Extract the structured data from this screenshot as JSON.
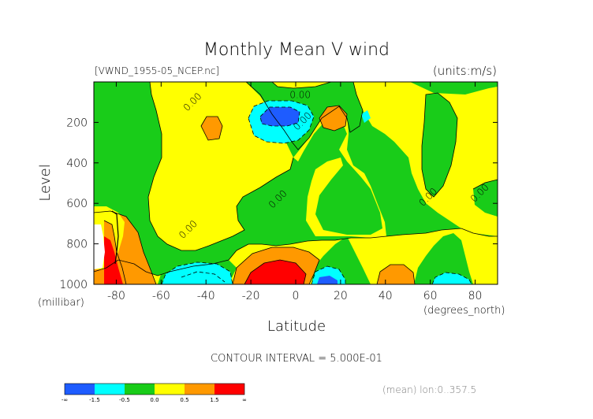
{
  "chart_data": {
    "type": "contour",
    "title": "Monthly Mean V wind",
    "subtitle_left": "[VWND_1955-05_NCEP.nc]",
    "subtitle_right": "(units:m/s)",
    "xlabel": "Latitude",
    "ylabel": "Level",
    "x_units": "(degrees_north)",
    "y_units": "(millibar)",
    "xlim": [
      -90,
      90
    ],
    "ylim": [
      1000,
      0
    ],
    "x_ticks": [
      -80,
      -60,
      -40,
      -20,
      0,
      20,
      40,
      60,
      80
    ],
    "y_ticks": [
      200,
      400,
      600,
      800,
      1000
    ],
    "contour_interval_text": "CONTOUR INTERVAL = 5.000E-01",
    "footer": "(mean) lon:0..357.5",
    "contour_labels": [
      {
        "text": "0.00",
        "x": 2,
        "y": 80
      },
      {
        "text": "0.00",
        "x": -45,
        "y": 110
      },
      {
        "text": "0.00",
        "x": 4,
        "y": 205
      },
      {
        "text": "0.00",
        "x": -7,
        "y": 590
      },
      {
        "text": "0.00",
        "x": -47,
        "y": 740
      },
      {
        "text": "0.00",
        "x": 60,
        "y": 580
      },
      {
        "text": "0.00",
        "x": 83,
        "y": 560
      }
    ],
    "colorbar": {
      "labels": [
        "-∞",
        "-1.5",
        "-0.5",
        "0.0",
        "0.5",
        "1.5",
        "∞"
      ],
      "colors": [
        "#1e5cff",
        "#00ffff",
        "#19cc19",
        "#ffff00",
        "#ff9900",
        "#ff0000"
      ]
    },
    "fill_colors": {
      "strong_negative": "#1e5cff",
      "negative": "#00ffff",
      "near_zero_negative": "#19cc19",
      "near_zero_positive": "#ffff00",
      "positive": "#ff9900",
      "strong_positive": "#ff0000"
    }
  }
}
